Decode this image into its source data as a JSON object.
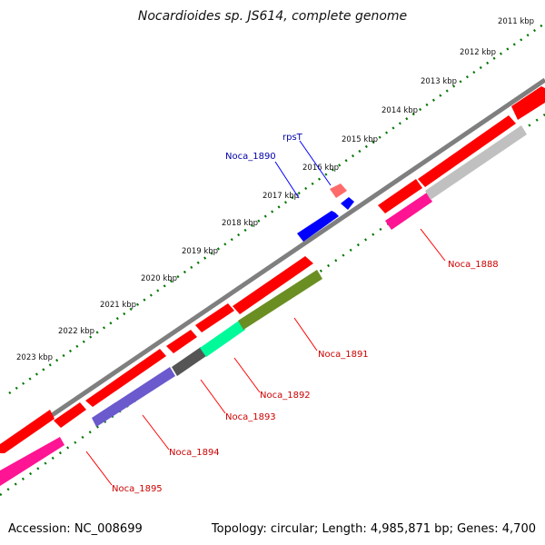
{
  "title": "Nocardioides sp. JS614, complete genome",
  "footer": {
    "accession": "Accession: NC_008699",
    "summary": "Topology: circular; Length: 4,985,871 bp; Genes: 4,700"
  },
  "scale_labels": [
    "2011 kbp",
    "2012 kbp",
    "2013 kbp",
    "2014 kbp",
    "2015 kbp",
    "2016 kbp",
    "2017 kbp",
    "2018 kbp",
    "2019 kbp",
    "2020 kbp",
    "2021 kbp",
    "2022 kbp",
    "2023 kbp"
  ],
  "gene_labels": [
    "rpsT",
    "Noca_1890",
    "Noca_1888",
    "Noca_1891",
    "Noca_1892",
    "Noca_1893",
    "Noca_1894",
    "Noca_1895"
  ],
  "colors": {
    "backbone": "#888888",
    "scale_ticks": "#007700",
    "cds_red": "#ff0000",
    "cds_pink": "#ff1493",
    "cds_gray": "#c0c0c0",
    "cds_olive": "#6b8e23",
    "cds_green": "#00fa9a",
    "cds_darkgray": "#555555",
    "cds_slate": "#6a5acd",
    "rna_blue": "#0000ff",
    "rna_salmon": "#f08080",
    "label_red": "#cc0000",
    "label_blue": "#0000aa"
  }
}
